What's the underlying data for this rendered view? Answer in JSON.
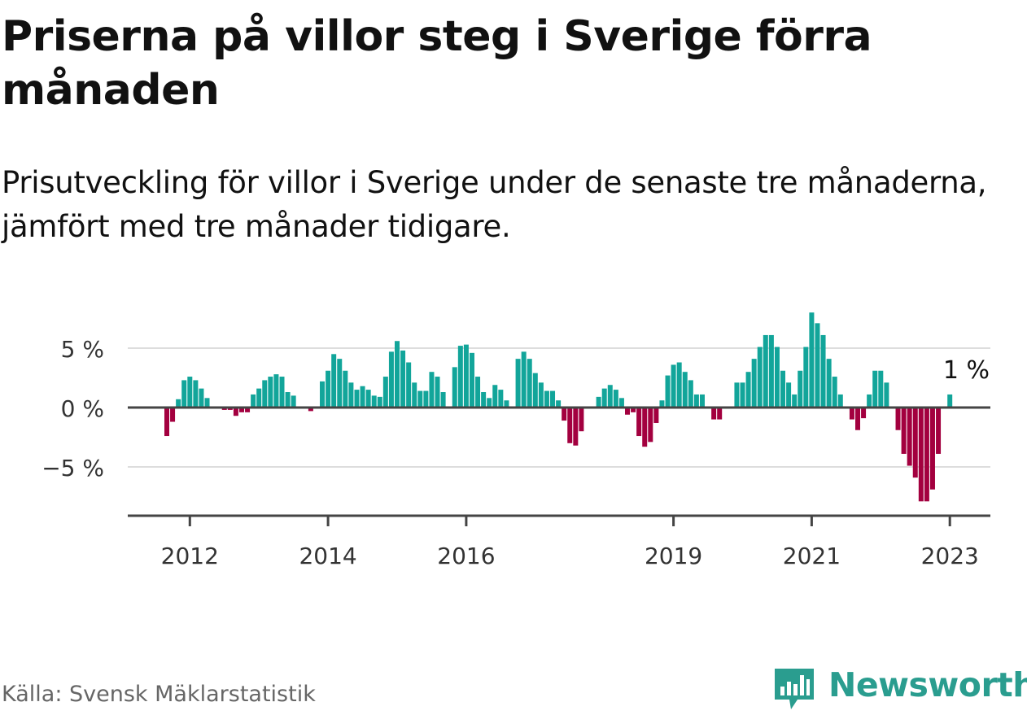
{
  "title": "Priserna på villor steg i Sverige förra månaden",
  "subtitle": "Prisutveckling för villor i Sverige under de senaste tre månaderna, jämfört med tre månader tidigare.",
  "source": "Källa: Svensk Mäklarstatistik",
  "brand": "Newsworthy",
  "colors": {
    "positive": "#12a59a",
    "negative": "#a3003f",
    "axis": "#444444",
    "grid": "#dddddd",
    "brand": "#2a9d8f"
  },
  "chart_data": {
    "type": "bar",
    "title": "Priserna på villor steg i Sverige förra månaden",
    "subtitle": "Prisutveckling för villor i Sverige under de senaste tre månaderna, jämfört med tre månader tidigare.",
    "x_unit": "month",
    "x_start": "2011-09",
    "x_end": "2023-04",
    "ylim": [
      -9.5,
      9
    ],
    "y_ticks": [
      {
        "value": 5,
        "label": "5 %"
      },
      {
        "value": 0,
        "label": "0 %"
      },
      {
        "value": -5,
        "label": "−5 %"
      }
    ],
    "x_ticks": [
      {
        "date": "2012-01",
        "label": "2012"
      },
      {
        "date": "2014-01",
        "label": "2014"
      },
      {
        "date": "2016-01",
        "label": "2016"
      },
      {
        "date": "2019-01",
        "label": "2019"
      },
      {
        "date": "2021-01",
        "label": "2021"
      },
      {
        "date": "2023-01",
        "label": "2023"
      }
    ],
    "grid": true,
    "annotation": {
      "text": "1 %",
      "date": "2023-04"
    },
    "values": [
      -2.4,
      -1.2,
      0.7,
      2.3,
      2.6,
      2.3,
      1.6,
      0.8,
      0,
      0,
      -0.2,
      -0.2,
      -0.7,
      -0.4,
      -0.4,
      1.1,
      1.6,
      2.3,
      2.6,
      2.8,
      2.6,
      1.3,
      1.0,
      0,
      0,
      -0.3,
      0,
      2.2,
      3.1,
      4.5,
      4.1,
      3.1,
      2.1,
      1.5,
      1.8,
      1.5,
      1.0,
      0.9,
      2.6,
      4.7,
      5.6,
      4.8,
      3.8,
      2.1,
      1.4,
      1.4,
      3.0,
      2.6,
      1.3,
      0,
      3.4,
      5.2,
      5.3,
      4.6,
      2.6,
      1.3,
      0.8,
      1.9,
      1.5,
      0.6,
      0,
      4.1,
      4.7,
      4.1,
      2.9,
      2.1,
      1.4,
      1.4,
      0.6,
      -1.1,
      -3.0,
      -3.2,
      -2.0,
      0,
      0,
      0.9,
      1.6,
      1.9,
      1.5,
      0.8,
      -0.6,
      -0.4,
      -2.4,
      -3.3,
      -2.9,
      -1.3,
      0.6,
      2.7,
      3.6,
      3.8,
      3.0,
      2.3,
      1.1,
      1.1,
      0,
      -1.0,
      -1.0,
      0,
      0,
      2.1,
      2.1,
      3.0,
      4.1,
      5.1,
      6.1,
      6.1,
      5.1,
      3.1,
      2.1,
      1.1,
      3.1,
      5.1,
      8.0,
      7.1,
      6.1,
      4.1,
      2.6,
      1.1,
      0,
      -1.0,
      -1.9,
      -0.9,
      1.1,
      3.1,
      3.1,
      2.1,
      0,
      -1.9,
      -3.9,
      -4.9,
      -5.9,
      -7.9,
      -7.9,
      -6.9,
      -3.9,
      0,
      1.1
    ]
  }
}
